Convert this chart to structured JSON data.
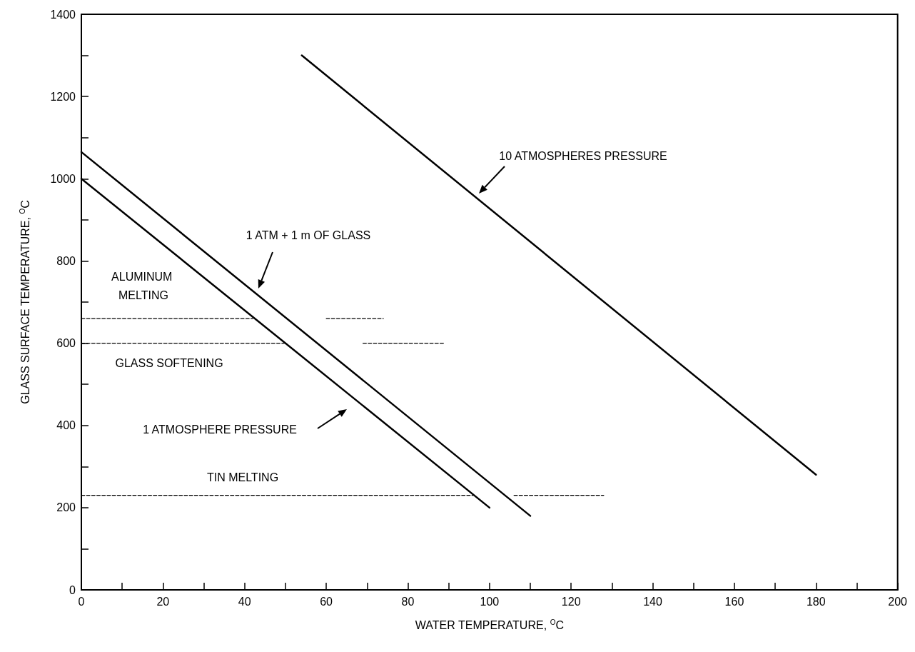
{
  "chart_data": {
    "type": "line",
    "xlabel": "WATER TEMPERATURE, $^{O}$C",
    "ylabel": "GLASS SURFACE TEMPERATURE, $^{O}$C",
    "xlim": [
      0,
      200
    ],
    "xticks": [
      0,
      {
        "value": 10,
        "label": null
      },
      20,
      {
        "value": 30,
        "label": null
      },
      40,
      {
        "value": 50,
        "label": null
      },
      60,
      {
        "value": 70,
        "label": null
      },
      80,
      {
        "value": 90,
        "label": null
      },
      100,
      {
        "value": 110,
        "label": null
      },
      120,
      {
        "value": 130,
        "label": null
      },
      140,
      {
        "value": 150,
        "label": null
      },
      160,
      {
        "value": 170,
        "label": null
      },
      180,
      {
        "value": 190,
        "label": null
      },
      200
    ],
    "ylim": [
      0,
      1400
    ],
    "yticks": [
      0,
      {
        "value": 100,
        "label": null
      },
      200,
      {
        "value": 300,
        "label": null
      },
      400,
      {
        "value": 500,
        "label": null
      },
      600,
      {
        "value": 700,
        "label": null
      },
      800,
      {
        "value": 900,
        "label": null
      },
      1000,
      {
        "value": 1100,
        "label": null
      },
      1200,
      {
        "value": 1300,
        "label": null
      },
      1400
    ],
    "grid": false,
    "legend": false,
    "marker": "none",
    "series": [
      {
        "color": "#000000",
        "x": [
          0,
          100
        ],
        "values": [
          1000,
          200
        ]
      },
      {
        "color": "#000000",
        "x": [
          0,
          110
        ],
        "values": [
          1065,
          180
        ]
      },
      {
        "color": "#000000",
        "x": [
          54,
          180
        ],
        "values": [
          1300,
          280
        ]
      },
      {
        "name": "ALUMINUM MELTING",
        "color": "#000000",
        "line_style": "dashed",
        "x": [
          0,
          42,
          51,
          60,
          74
        ],
        "values": [
          660,
          660,
          null,
          660,
          660
        ]
      },
      {
        "name": "GLASS SOFTENING",
        "color": "#000000",
        "line_style": "dashed",
        "x": [
          0,
          50,
          60,
          69,
          89
        ],
        "values": [
          600,
          600,
          null,
          600,
          600
        ]
      },
      {
        "name": "TIN MELTING",
        "color": "#000000",
        "line_style": "dashed",
        "x": [
          0,
          96,
          101,
          106,
          128
        ],
        "values": [
          230,
          230,
          null,
          230,
          230
        ]
      }
    ],
    "annotations": [
      "10 ATMOSPHERES PRESSURE",
      "1 ATM + 1 m OF GLASS",
      "1 ATMOSPHERE PRESSURE"
    ]
  }
}
